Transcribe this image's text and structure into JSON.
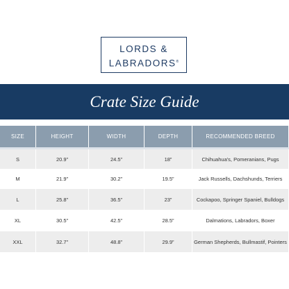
{
  "logo": {
    "line1": "LORDS &",
    "line2": "LABRADORS",
    "mark": "®"
  },
  "title": "Crate Size Guide",
  "table": {
    "columns": [
      "SIZE",
      "HEIGHT",
      "WIDTH",
      "DEPTH",
      "RECOMMENDED BREED"
    ],
    "rows": [
      [
        "S",
        "20.9”",
        "24.5”",
        "18”",
        "Chihuahua's, Pomeranians, Pugs"
      ],
      [
        "M",
        "21.9”",
        "30.2”",
        "19.5”",
        "Jack Russells, Dachshunds, Terriers"
      ],
      [
        "L",
        "25.8”",
        "36.5”",
        "23”",
        "Cockapoo, Springer Spaniel, Bulldogs"
      ],
      [
        "XL",
        "30.5”",
        "42.5”",
        "28.5”",
        "Dalmations, Labradors, Boxer"
      ],
      [
        "XXL",
        "32.7”",
        "48.8”",
        "29.9”",
        "German Shepherds, Bullmastif, Pointers"
      ]
    ]
  }
}
